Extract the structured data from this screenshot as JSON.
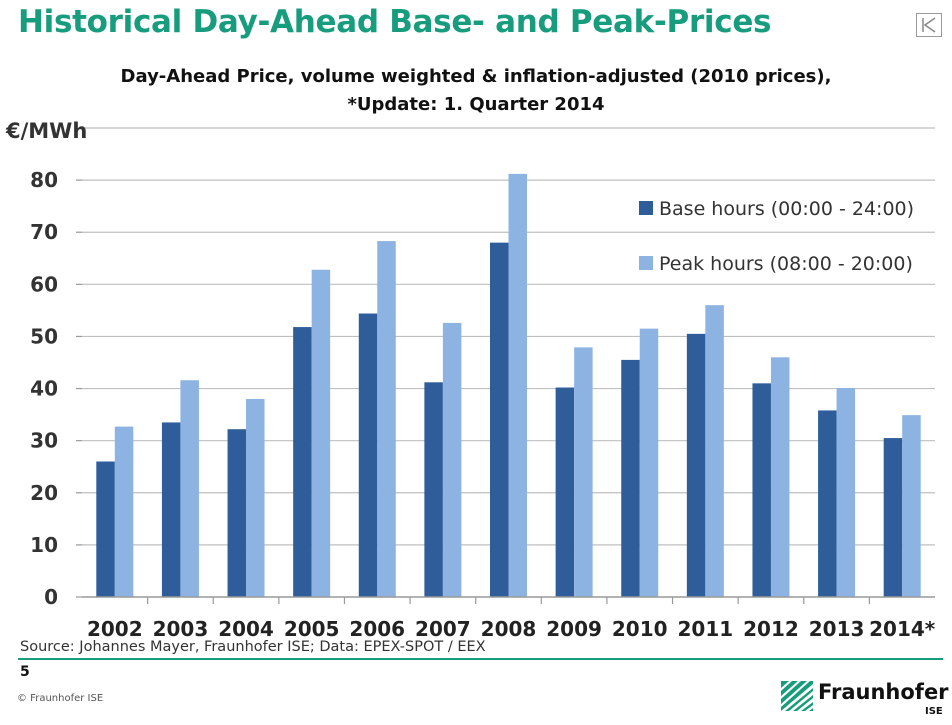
{
  "header": {
    "title": "Historical Day-Ahead Base- and Peak-Prices"
  },
  "chart_data": {
    "type": "bar",
    "title": "Day-Ahead Price, volume weighted & inflation-adjusted (2010 prices),",
    "subtitle": "*Update: 1. Quarter 2014",
    "xlabel": "",
    "ylabel": "€/MWh",
    "ylim": [
      0,
      90
    ],
    "yticks": [
      0,
      10,
      20,
      30,
      40,
      50,
      60,
      70,
      80
    ],
    "grid": true,
    "legend_position": "top-right",
    "categories": [
      "2002",
      "2003",
      "2004",
      "2005",
      "2006",
      "2007",
      "2008",
      "2009",
      "2010",
      "2011",
      "2012",
      "2013",
      "2014*"
    ],
    "series": [
      {
        "name": "Base hours (00:00 - 24:00)",
        "color": "#2f5d9a",
        "values": [
          26,
          33.5,
          32.2,
          51.8,
          54.4,
          41.2,
          68,
          40.2,
          45.5,
          50.5,
          41,
          35.8,
          30.5
        ]
      },
      {
        "name": "Peak hours (08:00 - 20:00)",
        "color": "#8db3e2",
        "values": [
          32.7,
          41.6,
          38,
          62.8,
          68.3,
          52.6,
          81.2,
          47.9,
          51.5,
          56,
          46,
          40.1,
          34.9
        ]
      }
    ]
  },
  "footer": {
    "source": "Source: Johannes Mayer, Fraunhofer ISE; Data: EPEX-SPOT / EEX",
    "page_number": "5",
    "copyright": "© Fraunhofer ISE",
    "logo_name": "Fraunhofer",
    "logo_sub": "ISE",
    "accent_color": "#179c7d"
  },
  "icons": {
    "nav": "skip-to-start-icon",
    "logo": "fraunhofer-logo-icon"
  }
}
